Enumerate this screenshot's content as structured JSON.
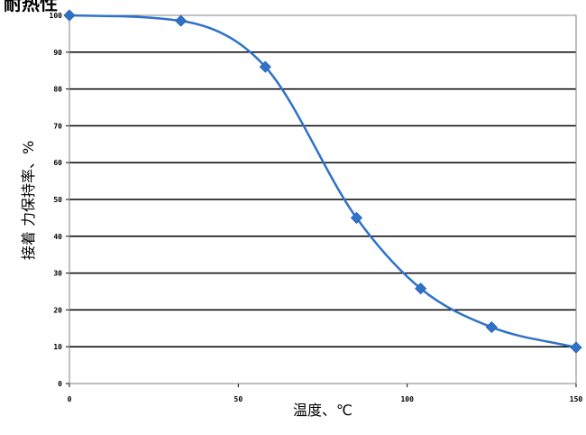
{
  "chart_data": {
    "type": "line",
    "title": "耐热性",
    "xlabel": "温度、℃",
    "ylabel": "接着 力保持率、%",
    "xlim": [
      0,
      150
    ],
    "ylim": [
      0,
      100
    ],
    "x_ticks": [
      0,
      50,
      100,
      150
    ],
    "y_ticks": [
      0,
      10,
      20,
      30,
      40,
      50,
      60,
      70,
      80,
      90,
      100
    ],
    "grid": "horizontal",
    "series": [
      {
        "x": [
          0,
          33,
          58,
          85,
          104,
          125,
          150
        ],
        "values": [
          100,
          98.5,
          86,
          45,
          25.8,
          15.3,
          9.8
        ],
        "color": "#2f72c8",
        "marker": "diamond",
        "smooth": true
      }
    ]
  }
}
